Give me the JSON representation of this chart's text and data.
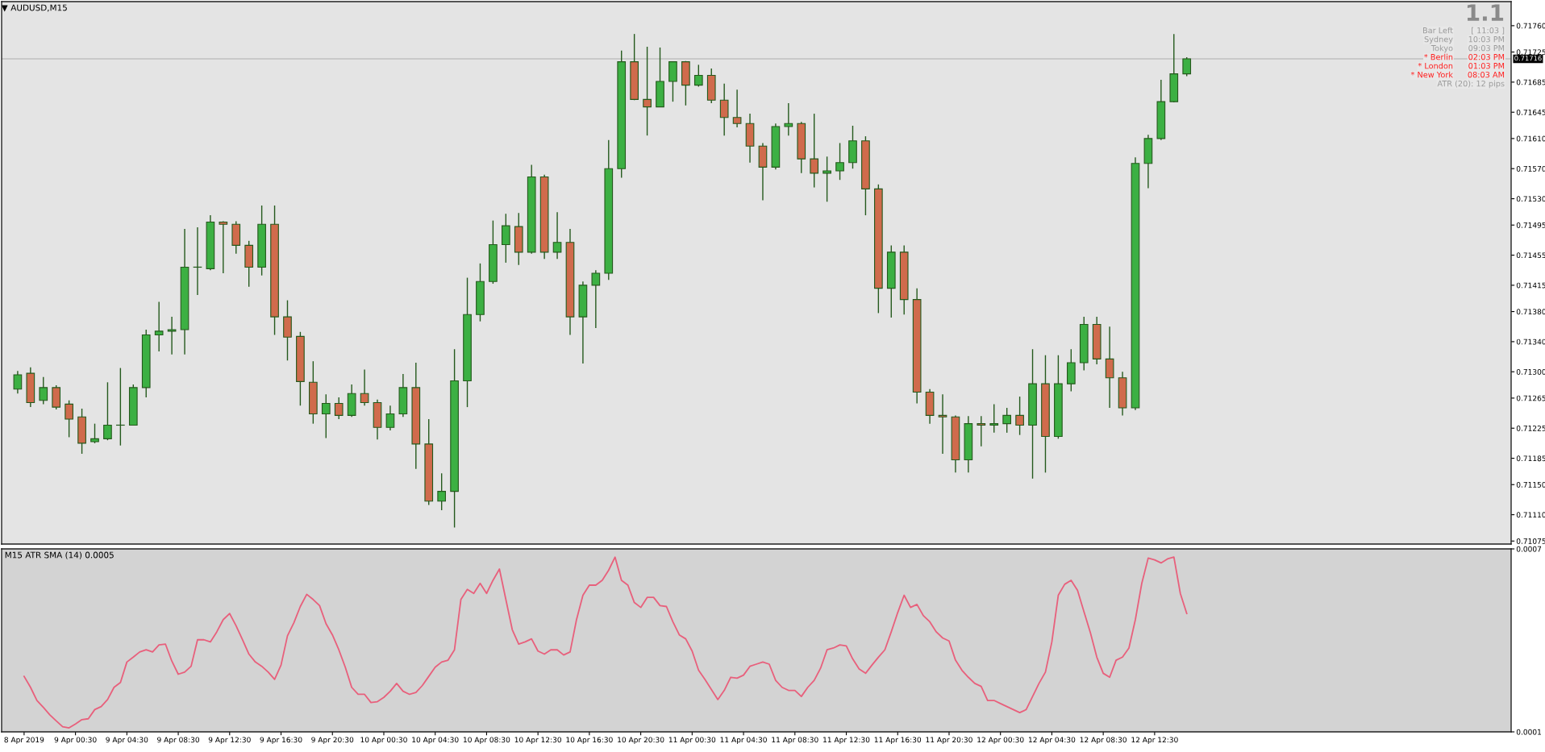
{
  "chart_data": [
    {
      "type": "candlestick",
      "title": "AUDUSD,M15",
      "x": [
        "2019-04-08T20:00",
        "2019-04-08T21:00",
        "2019-04-08T22:00",
        "2019-04-08T23:00",
        "2019-04-09T00:00",
        "2019-04-09T01:00",
        "2019-04-09T02:00",
        "2019-04-09T03:00",
        "2019-04-09T04:00",
        "2019-04-09T05:00",
        "2019-04-09T06:00",
        "2019-04-09T07:00",
        "2019-04-09T08:00",
        "2019-04-09T09:00",
        "2019-04-09T10:00",
        "2019-04-09T11:00",
        "2019-04-09T12:00",
        "2019-04-09T13:00",
        "2019-04-09T14:00",
        "2019-04-09T15:00",
        "2019-04-09T16:00",
        "2019-04-09T17:00",
        "2019-04-09T18:00",
        "2019-04-09T19:00",
        "2019-04-09T20:00",
        "2019-04-09T21:00",
        "2019-04-09T22:00",
        "2019-04-09T23:00",
        "2019-04-10T00:00",
        "2019-04-10T01:00",
        "2019-04-10T02:00",
        "2019-04-10T03:00",
        "2019-04-10T04:00",
        "2019-04-10T05:00",
        "2019-04-10T06:00",
        "2019-04-10T07:00",
        "2019-04-10T08:00",
        "2019-04-10T09:00",
        "2019-04-10T10:00",
        "2019-04-10T11:00",
        "2019-04-10T12:00",
        "2019-04-10T13:00",
        "2019-04-10T14:00",
        "2019-04-10T15:00",
        "2019-04-10T16:00",
        "2019-04-10T17:00",
        "2019-04-10T18:00",
        "2019-04-10T19:00",
        "2019-04-10T20:00",
        "2019-04-10T21:00",
        "2019-04-10T22:00",
        "2019-04-10T23:00",
        "2019-04-11T00:00",
        "2019-04-11T01:00",
        "2019-04-11T02:00",
        "2019-04-11T03:00",
        "2019-04-11T04:00",
        "2019-04-11T05:00",
        "2019-04-11T06:00",
        "2019-04-11T07:00",
        "2019-04-11T08:00",
        "2019-04-11T09:00",
        "2019-04-11T10:00",
        "2019-04-11T11:00",
        "2019-04-11T12:00",
        "2019-04-11T13:00",
        "2019-04-11T14:00",
        "2019-04-11T15:00",
        "2019-04-11T16:00",
        "2019-04-11T17:00",
        "2019-04-11T18:00",
        "2019-04-11T19:00",
        "2019-04-11T20:00",
        "2019-04-11T21:00",
        "2019-04-11T22:00",
        "2019-04-11T23:00",
        "2019-04-12T00:00",
        "2019-04-12T01:00",
        "2019-04-12T02:00",
        "2019-04-12T03:00",
        "2019-04-12T04:00",
        "2019-04-12T05:00",
        "2019-04-12T06:00",
        "2019-04-12T07:00",
        "2019-04-12T08:00",
        "2019-04-12T09:00",
        "2019-04-12T10:00",
        "2019-04-12T11:00",
        "2019-04-12T12:00",
        "2019-04-12T13:00",
        "2019-04-12T14:00",
        "2019-04-12T15:00"
      ],
      "ohlc": [
        [
          0.71277,
          0.71301,
          0.71271,
          0.71296
        ],
        [
          0.71298,
          0.71306,
          0.71253,
          0.71259
        ],
        [
          0.71262,
          0.71293,
          0.71257,
          0.71279
        ],
        [
          0.71279,
          0.71282,
          0.7125,
          0.71253
        ],
        [
          0.71257,
          0.71262,
          0.71213,
          0.71237
        ],
        [
          0.7124,
          0.71251,
          0.71191,
          0.71205
        ],
        [
          0.71207,
          0.71231,
          0.71205,
          0.71211
        ],
        [
          0.71211,
          0.71286,
          0.71209,
          0.71229
        ],
        [
          0.71229,
          0.71305,
          0.71202,
          0.71229
        ],
        [
          0.71229,
          0.71283,
          0.71229,
          0.71279
        ],
        [
          0.71279,
          0.71356,
          0.71266,
          0.71349
        ],
        [
          0.71349,
          0.71393,
          0.71327,
          0.71354
        ],
        [
          0.71354,
          0.71373,
          0.71323,
          0.71356
        ],
        [
          0.71356,
          0.7149,
          0.71323,
          0.71439
        ],
        [
          0.71439,
          0.71492,
          0.71402,
          0.71439
        ],
        [
          0.71437,
          0.71508,
          0.71435,
          0.71499
        ],
        [
          0.71499,
          0.715,
          0.71431,
          0.71496
        ],
        [
          0.71496,
          0.715,
          0.71457,
          0.71468
        ],
        [
          0.71468,
          0.71474,
          0.71413,
          0.71439
        ],
        [
          0.71439,
          0.71521,
          0.71428,
          0.71496
        ],
        [
          0.71496,
          0.71521,
          0.71349,
          0.71373
        ],
        [
          0.71373,
          0.71395,
          0.71315,
          0.71346
        ],
        [
          0.71347,
          0.71353,
          0.71255,
          0.71287
        ],
        [
          0.71286,
          0.71314,
          0.71231,
          0.71244
        ],
        [
          0.71244,
          0.7127,
          0.71212,
          0.71258
        ],
        [
          0.71258,
          0.71266,
          0.71237,
          0.71242
        ],
        [
          0.71242,
          0.71283,
          0.7124,
          0.71271
        ],
        [
          0.71271,
          0.71303,
          0.71255,
          0.71259
        ],
        [
          0.71259,
          0.71263,
          0.7121,
          0.71226
        ],
        [
          0.71226,
          0.71255,
          0.71222,
          0.71244
        ],
        [
          0.71244,
          0.71297,
          0.7124,
          0.71279
        ],
        [
          0.71279,
          0.71312,
          0.71171,
          0.71204
        ],
        [
          0.71204,
          0.71237,
          0.71123,
          0.71128
        ],
        [
          0.71128,
          0.71165,
          0.71116,
          0.71141
        ],
        [
          0.71141,
          0.7133,
          0.71093,
          0.71288
        ],
        [
          0.71288,
          0.71425,
          0.71253,
          0.71376
        ],
        [
          0.71376,
          0.71444,
          0.71367,
          0.7142
        ],
        [
          0.7142,
          0.71501,
          0.71417,
          0.71469
        ],
        [
          0.71469,
          0.7151,
          0.71445,
          0.71494
        ],
        [
          0.71493,
          0.71511,
          0.71442,
          0.71459
        ],
        [
          0.71459,
          0.71575,
          0.71457,
          0.71559
        ],
        [
          0.71559,
          0.71562,
          0.7145,
          0.71459
        ],
        [
          0.71459,
          0.71512,
          0.7145,
          0.71472
        ],
        [
          0.71472,
          0.7149,
          0.71349,
          0.71373
        ],
        [
          0.71373,
          0.7142,
          0.71311,
          0.71415
        ],
        [
          0.71415,
          0.71435,
          0.71358,
          0.71431
        ],
        [
          0.71431,
          0.71608,
          0.71422,
          0.7157
        ],
        [
          0.7157,
          0.71727,
          0.71558,
          0.71712
        ],
        [
          0.71712,
          0.71749,
          0.71661,
          0.71662
        ],
        [
          0.71662,
          0.71732,
          0.71614,
          0.71652
        ],
        [
          0.71652,
          0.71731,
          0.71652,
          0.71686
        ],
        [
          0.71686,
          0.71712,
          0.71659,
          0.71712
        ],
        [
          0.71712,
          0.71713,
          0.71654,
          0.71681
        ],
        [
          0.71681,
          0.71708,
          0.71679,
          0.71694
        ],
        [
          0.71694,
          0.71703,
          0.71657,
          0.71661
        ],
        [
          0.71661,
          0.71683,
          0.71614,
          0.71638
        ],
        [
          0.71638,
          0.71675,
          0.71625,
          0.7163
        ],
        [
          0.7163,
          0.71643,
          0.71578,
          0.716
        ],
        [
          0.716,
          0.71604,
          0.71528,
          0.71572
        ],
        [
          0.71572,
          0.7163,
          0.71569,
          0.71626
        ],
        [
          0.71626,
          0.71657,
          0.71614,
          0.7163
        ],
        [
          0.7163,
          0.71632,
          0.71564,
          0.71583
        ],
        [
          0.71583,
          0.71643,
          0.71545,
          0.71564
        ],
        [
          0.71564,
          0.71586,
          0.71526,
          0.71567
        ],
        [
          0.71567,
          0.71604,
          0.71555,
          0.71578
        ],
        [
          0.71578,
          0.71627,
          0.7157,
          0.71607
        ],
        [
          0.71607,
          0.71613,
          0.71508,
          0.71543
        ],
        [
          0.71543,
          0.71549,
          0.71378,
          0.71411
        ],
        [
          0.71411,
          0.71468,
          0.71372,
          0.71459
        ],
        [
          0.71459,
          0.71468,
          0.71376,
          0.71396
        ],
        [
          0.71396,
          0.71411,
          0.71258,
          0.71273
        ],
        [
          0.71273,
          0.71277,
          0.71231,
          0.71242
        ],
        [
          0.71242,
          0.7127,
          0.71191,
          0.7124
        ],
        [
          0.7124,
          0.71242,
          0.71166,
          0.71183
        ],
        [
          0.71183,
          0.71241,
          0.71166,
          0.71231
        ],
        [
          0.71231,
          0.71241,
          0.71201,
          0.71229
        ],
        [
          0.71229,
          0.71257,
          0.71219,
          0.71231
        ],
        [
          0.71231,
          0.71252,
          0.71219,
          0.71242
        ],
        [
          0.71242,
          0.71267,
          0.71216,
          0.71229
        ],
        [
          0.71229,
          0.7133,
          0.71158,
          0.71284
        ],
        [
          0.71284,
          0.71322,
          0.71166,
          0.71214
        ],
        [
          0.71214,
          0.71322,
          0.71211,
          0.71284
        ],
        [
          0.71284,
          0.7133,
          0.71274,
          0.71312
        ],
        [
          0.71312,
          0.71373,
          0.71302,
          0.71363
        ],
        [
          0.71363,
          0.71373,
          0.7131,
          0.71317
        ],
        [
          0.71317,
          0.7136,
          0.71252,
          0.71292
        ],
        [
          0.71292,
          0.713,
          0.71242,
          0.71252
        ],
        [
          0.71252,
          0.71585,
          0.71249,
          0.71577
        ],
        [
          0.71577,
          0.71615,
          0.71544,
          0.7161
        ],
        [
          0.7161,
          0.71688,
          0.71608,
          0.71659
        ],
        [
          0.71659,
          0.71749,
          0.71658,
          0.71696
        ],
        [
          0.71696,
          0.71718,
          0.71693,
          0.71716
        ]
      ],
      "colors": [
        "#3cb043",
        "#d06b4c",
        "#3cb043",
        "#d06b4c",
        "#d06b4c",
        "#d06b4c",
        "#3cb043",
        "#3cb043",
        "#3cb043",
        "#3cb043",
        "#3cb043",
        "#3cb043",
        "#3cb043",
        "#3cb043",
        "#3cb043",
        "#3cb043",
        "#d06b4c",
        "#d06b4c",
        "#d06b4c",
        "#3cb043",
        "#d06b4c",
        "#d06b4c",
        "#d06b4c",
        "#d06b4c",
        "#3cb043",
        "#d06b4c",
        "#3cb043",
        "#d06b4c",
        "#d06b4c",
        "#3cb043",
        "#3cb043",
        "#d06b4c",
        "#d06b4c",
        "#3cb043",
        "#3cb043",
        "#3cb043",
        "#3cb043",
        "#3cb043",
        "#3cb043",
        "#d06b4c",
        "#3cb043",
        "#d06b4c",
        "#3cb043",
        "#d06b4c",
        "#3cb043",
        "#3cb043",
        "#3cb043",
        "#3cb043",
        "#d06b4c",
        "#d06b4c",
        "#3cb043",
        "#3cb043",
        "#d06b4c",
        "#3cb043",
        "#d06b4c",
        "#d06b4c",
        "#d06b4c",
        "#d06b4c",
        "#d06b4c",
        "#3cb043",
        "#3cb043",
        "#d06b4c",
        "#d06b4c",
        "#3cb043",
        "#3cb043",
        "#3cb043",
        "#d06b4c",
        "#d06b4c",
        "#3cb043",
        "#d06b4c",
        "#d06b4c",
        "#d06b4c",
        "#d06b4c",
        "#d06b4c",
        "#3cb043",
        "#d06b4c",
        "#3cb043",
        "#3cb043",
        "#d06b4c",
        "#3cb043",
        "#d06b4c",
        "#3cb043",
        "#3cb043",
        "#3cb043",
        "#d06b4c",
        "#d06b4c",
        "#d06b4c",
        "#3cb043",
        "#3cb043",
        "#3cb043",
        "#3cb043",
        "#3cb043"
      ],
      "xlim": [
        "2019-04-08T18:45",
        "2019-04-13T16:15"
      ],
      "ylim": [
        0.71071,
        0.71792
      ],
      "yticks": [
        {
          "value": 0.7176,
          "label": "0.71760"
        },
        {
          "value": 0.71725,
          "label": "0.71725"
        },
        {
          "value": 0.71685,
          "label": "0.71685"
        },
        {
          "value": 0.71645,
          "label": "0.71645"
        },
        {
          "value": 0.7161,
          "label": "0.71610"
        },
        {
          "value": 0.7157,
          "label": "0.71570"
        },
        {
          "value": 0.7153,
          "label": "0.71530"
        },
        {
          "value": 0.71495,
          "label": "0.71495"
        },
        {
          "value": 0.71455,
          "label": "0.71455"
        },
        {
          "value": 0.71415,
          "label": "0.71415"
        },
        {
          "value": 0.7138,
          "label": "0.71380"
        },
        {
          "value": 0.7134,
          "label": "0.71340"
        },
        {
          "value": 0.713,
          "label": "0.71300"
        },
        {
          "value": 0.71265,
          "label": "0.71265"
        },
        {
          "value": 0.71225,
          "label": "0.71225"
        },
        {
          "value": 0.71185,
          "label": "0.71185"
        },
        {
          "value": 0.7115,
          "label": "0.71150"
        },
        {
          "value": 0.7111,
          "label": "0.71110"
        },
        {
          "value": 0.71075,
          "label": "0.71075"
        }
      ],
      "ref_lines": [
        {
          "axis": "y",
          "value": 0.71716,
          "label": "0.71716",
          "color": "#c0c0c0"
        }
      ],
      "tick_labels": "y",
      "annotations": [
        "1.1",
        "Bar Left",
        "[ 11:03 ]",
        "Sydney",
        "10:03 PM",
        "Tokyo",
        "09:03 PM",
        "* Berlin",
        "02:03 PM",
        "* London",
        "01:03 PM",
        "* New York",
        "08:03 AM",
        "ATR (20): 12 pips"
      ]
    },
    {
      "type": "line",
      "title": "M15 ATR SMA (14) 0.0005",
      "series": [
        {
          "color": "#e8607c",
          "x": [
            "2019-04-08T20:30",
            "2019-04-08T21:00",
            "2019-04-08T21:30",
            "2019-04-08T22:00",
            "2019-04-08T22:30",
            "2019-04-08T23:00",
            "2019-04-08T23:30",
            "2019-04-09T00:00",
            "2019-04-09T00:30",
            "2019-04-09T01:00",
            "2019-04-09T01:30",
            "2019-04-09T02:00",
            "2019-04-09T02:30",
            "2019-04-09T03:00",
            "2019-04-09T03:30",
            "2019-04-09T04:00",
            "2019-04-09T04:30",
            "2019-04-09T05:00",
            "2019-04-09T05:30",
            "2019-04-09T06:00",
            "2019-04-09T06:30",
            "2019-04-09T07:00",
            "2019-04-09T07:30",
            "2019-04-09T08:00",
            "2019-04-09T08:30",
            "2019-04-09T09:00",
            "2019-04-09T09:30",
            "2019-04-09T10:00",
            "2019-04-09T10:30",
            "2019-04-09T11:00",
            "2019-04-09T11:30",
            "2019-04-09T12:00",
            "2019-04-09T12:30",
            "2019-04-09T13:00",
            "2019-04-09T13:30",
            "2019-04-09T14:00",
            "2019-04-09T14:30",
            "2019-04-09T15:00",
            "2019-04-09T15:30",
            "2019-04-09T16:00",
            "2019-04-09T16:30",
            "2019-04-09T17:00",
            "2019-04-09T17:30",
            "2019-04-09T18:00",
            "2019-04-09T18:30",
            "2019-04-09T19:00",
            "2019-04-09T19:30",
            "2019-04-09T20:00",
            "2019-04-09T20:30",
            "2019-04-09T21:00",
            "2019-04-09T21:30",
            "2019-04-09T22:00",
            "2019-04-09T22:30",
            "2019-04-09T23:00",
            "2019-04-09T23:30",
            "2019-04-10T00:00",
            "2019-04-10T00:30",
            "2019-04-10T01:00",
            "2019-04-10T01:30",
            "2019-04-10T02:00",
            "2019-04-10T02:30",
            "2019-04-10T03:00",
            "2019-04-10T03:30",
            "2019-04-10T04:00",
            "2019-04-10T04:30",
            "2019-04-10T05:00",
            "2019-04-10T05:30",
            "2019-04-10T06:00",
            "2019-04-10T06:30",
            "2019-04-10T07:00",
            "2019-04-10T07:30",
            "2019-04-10T08:00",
            "2019-04-10T08:30",
            "2019-04-10T09:00",
            "2019-04-10T09:30",
            "2019-04-10T10:00",
            "2019-04-10T10:30",
            "2019-04-10T11:00",
            "2019-04-10T11:30",
            "2019-04-10T12:00",
            "2019-04-10T12:30",
            "2019-04-10T13:00",
            "2019-04-10T13:30",
            "2019-04-10T14:00",
            "2019-04-10T14:30",
            "2019-04-10T15:00",
            "2019-04-10T15:30",
            "2019-04-10T16:00",
            "2019-04-10T16:30",
            "2019-04-10T17:00",
            "2019-04-10T17:30",
            "2019-04-10T18:00",
            "2019-04-10T18:30",
            "2019-04-10T19:00",
            "2019-04-10T19:30",
            "2019-04-10T20:00",
            "2019-04-10T20:30",
            "2019-04-10T21:00",
            "2019-04-10T21:30",
            "2019-04-10T22:00",
            "2019-04-10T22:30",
            "2019-04-10T23:00",
            "2019-04-10T23:30",
            "2019-04-11T00:00",
            "2019-04-11T00:30",
            "2019-04-11T01:00",
            "2019-04-11T01:30",
            "2019-04-11T02:00",
            "2019-04-11T02:30",
            "2019-04-11T03:00",
            "2019-04-11T03:30",
            "2019-04-11T04:00",
            "2019-04-11T04:30",
            "2019-04-11T05:00",
            "2019-04-11T05:30",
            "2019-04-11T06:00",
            "2019-04-11T06:30",
            "2019-04-11T07:00",
            "2019-04-11T07:30",
            "2019-04-11T08:00",
            "2019-04-11T08:30",
            "2019-04-11T09:00",
            "2019-04-11T09:30",
            "2019-04-11T10:00",
            "2019-04-11T10:30",
            "2019-04-11T11:00",
            "2019-04-11T11:30",
            "2019-04-11T12:00",
            "2019-04-11T12:30",
            "2019-04-11T13:00",
            "2019-04-11T13:30",
            "2019-04-11T14:00",
            "2019-04-11T14:30",
            "2019-04-11T15:00",
            "2019-04-11T15:30",
            "2019-04-11T16:00",
            "2019-04-11T16:30",
            "2019-04-11T17:00",
            "2019-04-11T17:30",
            "2019-04-11T18:00",
            "2019-04-11T18:30",
            "2019-04-11T19:00",
            "2019-04-11T19:30",
            "2019-04-11T20:00",
            "2019-04-11T20:30",
            "2019-04-11T21:00",
            "2019-04-11T21:30",
            "2019-04-11T22:00",
            "2019-04-11T22:30",
            "2019-04-11T23:00",
            "2019-04-11T23:30",
            "2019-04-12T00:00",
            "2019-04-12T00:30",
            "2019-04-12T01:00",
            "2019-04-12T01:30",
            "2019-04-12T02:00",
            "2019-04-12T02:30",
            "2019-04-12T03:00",
            "2019-04-12T03:30",
            "2019-04-12T04:00",
            "2019-04-12T04:30",
            "2019-04-12T05:00",
            "2019-04-12T05:30",
            "2019-04-12T06:00",
            "2019-04-12T06:30",
            "2019-04-12T07:00",
            "2019-04-12T07:30",
            "2019-04-12T08:00",
            "2019-04-12T08:30",
            "2019-04-12T09:00",
            "2019-04-12T09:30",
            "2019-04-12T10:00",
            "2019-04-12T10:30",
            "2019-04-12T11:00",
            "2019-04-12T11:30",
            "2019-04-12T12:00",
            "2019-04-12T12:30",
            "2019-04-12T13:00",
            "2019-04-12T13:30",
            "2019-04-12T14:00",
            "2019-04-12T14:30",
            "2019-04-12T15:00"
          ],
          "values": [
            0.000282,
            0.000246,
            0.000203,
            0.00018,
            0.000156,
            0.000136,
            0.000117,
            0.000113,
            0.000126,
            0.00014,
            0.000143,
            0.000173,
            0.000183,
            0.000206,
            0.000246,
            0.000262,
            0.000329,
            0.000345,
            0.000362,
            0.000369,
            0.000362,
            0.000385,
            0.000388,
            0.000332,
            0.000289,
            0.000296,
            0.000315,
            0.000402,
            0.000402,
            0.000395,
            0.000428,
            0.000468,
            0.000488,
            0.000448,
            0.000402,
            0.000355,
            0.000329,
            0.000315,
            0.000296,
            0.000272,
            0.000319,
            0.000415,
            0.000458,
            0.000511,
            0.000551,
            0.000534,
            0.000514,
            0.000455,
            0.000418,
            0.000369,
            0.000312,
            0.000246,
            0.000223,
            0.000223,
            0.000196,
            0.000199,
            0.000213,
            0.000233,
            0.000259,
            0.000233,
            0.000223,
            0.000229,
            0.000252,
            0.000282,
            0.000312,
            0.000329,
            0.000335,
            0.000369,
            0.000534,
            0.000567,
            0.000554,
            0.000587,
            0.000554,
            0.000597,
            0.000634,
            0.000534,
            0.000435,
            0.000388,
            0.000395,
            0.000405,
            0.000365,
            0.000355,
            0.000369,
            0.000369,
            0.000352,
            0.000362,
            0.000468,
            0.000548,
            0.000581,
            0.000581,
            0.000597,
            0.00063,
            0.000673,
            0.000597,
            0.000581,
            0.000524,
            0.000508,
            0.000541,
            0.000541,
            0.000514,
            0.000511,
            0.000461,
            0.000418,
            0.000405,
            0.000365,
            0.000302,
            0.000272,
            0.000239,
            0.000206,
            0.000236,
            0.000279,
            0.000276,
            0.000286,
            0.000315,
            0.000322,
            0.000329,
            0.000322,
            0.000269,
            0.000246,
            0.000236,
            0.000236,
            0.000216,
            0.000246,
            0.000269,
            0.000309,
            0.000369,
            0.000375,
            0.000385,
            0.000382,
            0.000339,
            0.000306,
            0.000292,
            0.000319,
            0.000345,
            0.000369,
            0.000428,
            0.000491,
            0.000548,
            0.000508,
            0.000518,
            0.000481,
            0.000461,
            0.000428,
            0.000408,
            0.000398,
            0.000335,
            0.000302,
            0.000279,
            0.000259,
            0.000249,
            0.000203,
            0.000203,
            0.000193,
            0.000183,
            0.000173,
            0.000163,
            0.000173,
            0.000216,
            0.000259,
            0.000296,
            0.000395,
            0.000548,
            0.000584,
            0.000597,
            0.000564,
            0.000494,
            0.000425,
            0.000345,
            0.000292,
            0.000279,
            0.000335,
            0.000345,
            0.000375,
            0.000468,
            0.000587,
            0.00067,
            0.000664,
            0.000654,
            0.000667,
            0.000673,
            0.000554,
            0.000488
          ]
        }
      ],
      "xlim": [
        "2019-04-08T18:45",
        "2019-04-13T16:15"
      ],
      "xticks": [
        {
          "value": "2019-04-08T20:30",
          "label": "8 Apr 2019"
        },
        {
          "value": "2019-04-09T00:30",
          "label": "9 Apr 00:30"
        },
        {
          "value": "2019-04-09T04:30",
          "label": "9 Apr 04:30"
        },
        {
          "value": "2019-04-09T08:30",
          "label": "9 Apr 08:30"
        },
        {
          "value": "2019-04-09T12:30",
          "label": "9 Apr 12:30"
        },
        {
          "value": "2019-04-09T16:30",
          "label": "9 Apr 16:30"
        },
        {
          "value": "2019-04-09T20:30",
          "label": "9 Apr 20:30"
        },
        {
          "value": "2019-04-10T00:30",
          "label": "10 Apr 00:30"
        },
        {
          "value": "2019-04-10T04:30",
          "label": "10 Apr 04:30"
        },
        {
          "value": "2019-04-10T08:30",
          "label": "10 Apr 08:30"
        },
        {
          "value": "2019-04-10T12:30",
          "label": "10 Apr 12:30"
        },
        {
          "value": "2019-04-10T16:30",
          "label": "10 Apr 16:30"
        },
        {
          "value": "2019-04-10T20:30",
          "label": "10 Apr 20:30"
        },
        {
          "value": "2019-04-11T00:30",
          "label": "11 Apr 00:30"
        },
        {
          "value": "2019-04-11T04:30",
          "label": "11 Apr 04:30"
        },
        {
          "value": "2019-04-11T08:30",
          "label": "11 Apr 08:30"
        },
        {
          "value": "2019-04-11T12:30",
          "label": "11 Apr 12:30"
        },
        {
          "value": "2019-04-11T16:30",
          "label": "11 Apr 16:30"
        },
        {
          "value": "2019-04-11T20:30",
          "label": "11 Apr 20:30"
        },
        {
          "value": "2019-04-12T00:30",
          "label": "12 Apr 00:30"
        },
        {
          "value": "2019-04-12T04:30",
          "label": "12 Apr 04:30"
        },
        {
          "value": "2019-04-12T08:30",
          "label": "12 Apr 08:30"
        },
        {
          "value": "2019-04-12T12:30",
          "label": "12 Apr 12:30"
        }
      ],
      "ylim": [
        0.0001,
        0.0007
      ],
      "yticks": [
        0.0007,
        0.0001
      ]
    }
  ]
}
